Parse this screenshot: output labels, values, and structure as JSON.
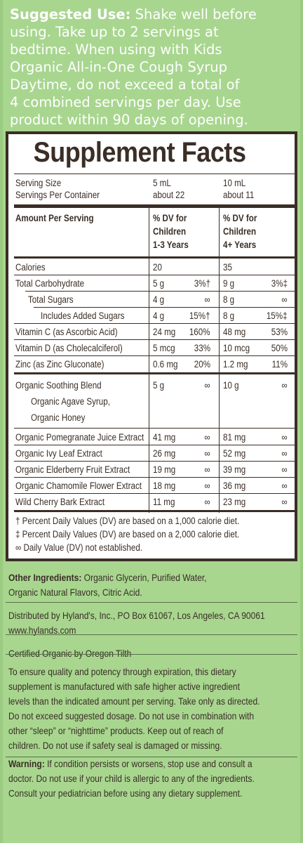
{
  "suggested_use": {
    "heading": "Suggested Use:",
    "lines": [
      " Shake well before",
      "using. Take up to 2 servings at",
      "bedtime. When using with Kids",
      "Organic All-in-One Cough Syrup",
      "Daytime, do not exceed a total of",
      "4 combined servings per day. Use",
      "product within 90 days of opening."
    ]
  },
  "facts": {
    "title": "Supplement Facts",
    "serving_size_label": "Serving Size",
    "servings_per_container_label": "Servings Per Container",
    "col1_serving": "5 mL",
    "col1_servings": "about 22",
    "col2_serving": "10 mL",
    "col2_servings": "about 11",
    "amount_per_serving": "Amount Per Serving",
    "col1_dv_header": [
      "% DV for",
      "Children",
      "1-3 Years"
    ],
    "col2_dv_header": [
      "% DV for",
      "Children",
      "4+ Years"
    ],
    "rows": [
      {
        "name": "Calories",
        "a1": "20",
        "d1": "",
        "a2": "35",
        "d2": ""
      },
      {
        "name": "Total Carbohydrate",
        "a1": "5 g",
        "d1": "3%†",
        "a2": "9 g",
        "d2": "3%‡"
      },
      {
        "name": "Total Sugars",
        "a1": "4 g",
        "d1": "∞",
        "a2": "8 g",
        "d2": "∞"
      },
      {
        "name": "Includes Added Sugars",
        "a1": "4 g",
        "d1": "15%†",
        "a2": "8 g",
        "d2": "15%‡"
      },
      {
        "name": "Vitamin C (as Ascorbic Acid)",
        "a1": "24 mg",
        "d1": "160%",
        "a2": "48 mg",
        "d2": "53%"
      },
      {
        "name": "Vitamin D (as Cholecalciferol)",
        "a1": "5 mcg",
        "d1": "33%",
        "a2": "10 mcg",
        "d2": "50%"
      },
      {
        "name": "Zinc (as Zinc Gluconate)",
        "a1": "0.6 mg",
        "d1": "20%",
        "a2": "1.2 mg",
        "d2": "11%"
      }
    ],
    "blend": {
      "name": "Organic Soothing Blend",
      "sub1": "Organic Agave Syrup,",
      "sub2": "Organic Honey",
      "a1": "5 g",
      "d1": "∞",
      "a2": "10 g",
      "d2": "∞"
    },
    "extracts": [
      {
        "name": "Organic Pomegranate Juice Extract",
        "a1": "41 mg",
        "d1": "∞",
        "a2": "81 mg",
        "d2": "∞"
      },
      {
        "name": "Organic Ivy Leaf Extract",
        "a1": "26 mg",
        "d1": "∞",
        "a2": "52 mg",
        "d2": "∞"
      },
      {
        "name": "Organic Elderberry Fruit Extract",
        "a1": "19 mg",
        "d1": "∞",
        "a2": "39 mg",
        "d2": "∞"
      },
      {
        "name": "Organic Chamomile Flower Extract",
        "a1": "18 mg",
        "d1": "∞",
        "a2": "36 mg",
        "d2": "∞"
      },
      {
        "name": "Wild Cherry Bark Extract",
        "a1": "11 mg",
        "d1": "∞",
        "a2": "23 mg",
        "d2": "∞"
      }
    ],
    "footnotes": [
      "† Percent Daily Values (DV) are based on a 1,000 calorie diet.",
      "‡ Percent Daily Values (DV) are based on a 2,000 calorie diet.",
      "∞ Daily Value (DV) not established."
    ]
  },
  "other": {
    "ingredients_label": "Other Ingredients:",
    "ingredients_line1": " Organic Glycerin, Purified Water,",
    "ingredients_line2": "Organic Natural Flavors, Citric Acid.",
    "distributed": "Distributed by Hyland's, Inc., PO Box 61067, Los Angeles, CA 90061",
    "website": "www.hylands.com",
    "certified": "Certified Organic by Oregon Tilth",
    "quality_lines": [
      "To ensure quality and potency through expiration, this dietary",
      "supplement is manufactured with safe higher active ingredient",
      "levels than the indicated amount per serving. Take only as directed.",
      "Do not exceed suggested dosage. Do not use in combination with",
      "other “sleep” or “nighttime” products. Keep out of reach of",
      "children. Do not use if safety seal is damaged or missing."
    ],
    "warning_label": "Warning:",
    "warning_line1": " If condition persists or worsens, stop use and consult a",
    "warning_line2": "doctor. Do not use if your child is allergic to any of the ingredients.",
    "warning_line3": "Consult your pediatrician before using any dietary supplement."
  }
}
